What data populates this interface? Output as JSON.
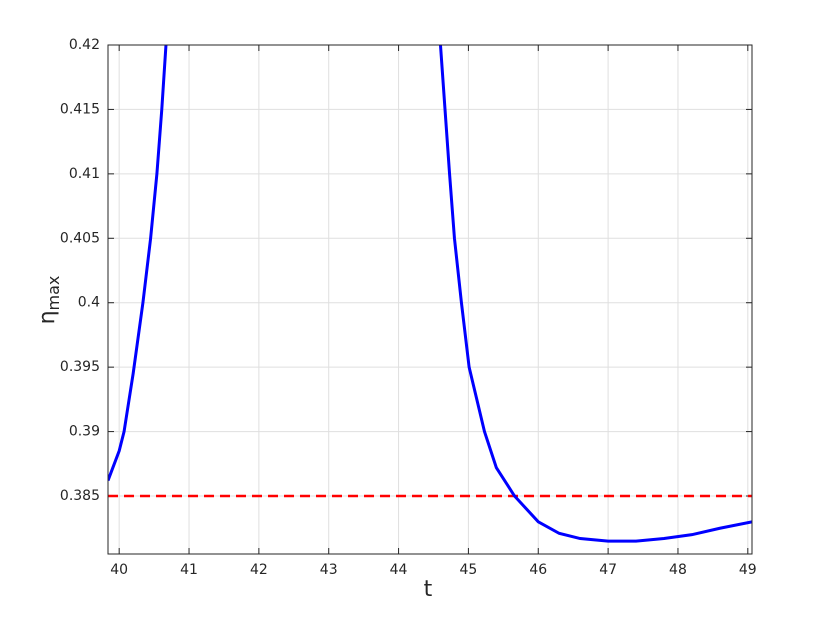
{
  "chart_data": {
    "type": "line",
    "xlabel": "t",
    "ylabel": "η",
    "ylabel_sub": "max",
    "x": [
      39.84,
      40.0,
      40.07,
      40.2,
      40.34,
      40.45,
      40.54,
      40.61,
      40.67,
      null,
      44.6,
      44.73,
      44.8,
      44.9,
      45.01,
      45.23,
      45.4,
      45.66,
      46.0,
      46.3,
      46.6,
      47.0,
      47.4,
      47.8,
      48.2,
      48.6,
      49.06
    ],
    "series": [
      {
        "color": "#0000ff",
        "values": [
          0.3862,
          0.3885,
          0.39,
          0.3945,
          0.4,
          0.405,
          0.41,
          0.415,
          0.42,
          null,
          0.42,
          0.41,
          0.405,
          0.4,
          0.395,
          0.39,
          0.3872,
          0.385,
          0.383,
          0.3821,
          0.3817,
          0.3815,
          0.3815,
          0.3817,
          0.382,
          0.3825,
          0.383
        ]
      }
    ],
    "hline": {
      "value": 0.385,
      "color": "#ff0000"
    },
    "xlim": [
      39.84,
      49.06
    ],
    "xticks": [
      40,
      41,
      42,
      43,
      44,
      45,
      46,
      47,
      48,
      49
    ],
    "ylim": [
      0.3805,
      0.42
    ],
    "yticks": [
      0.385,
      0.39,
      0.395,
      0.4,
      0.405,
      0.41,
      0.415,
      0.42
    ],
    "grid": true
  }
}
